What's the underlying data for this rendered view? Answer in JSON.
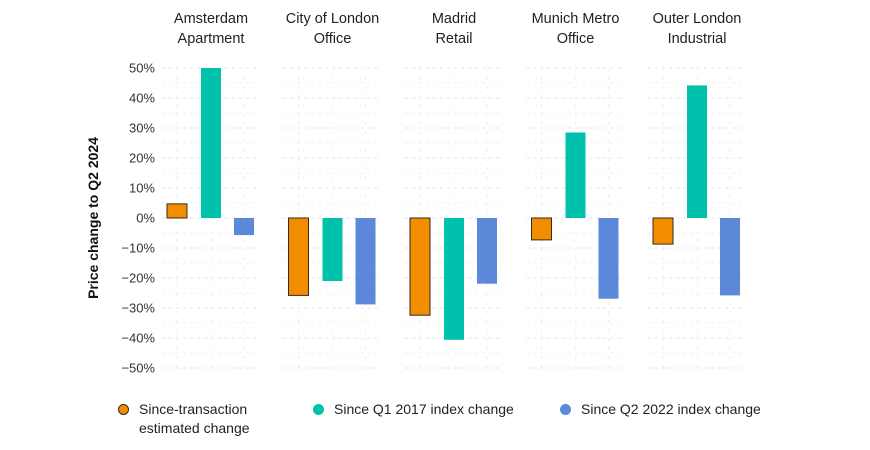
{
  "chart_data": {
    "type": "bar",
    "title": "",
    "xlabel": "",
    "ylabel": "Price change to Q2 2024",
    "ylim": [
      -50,
      50
    ],
    "y_ticks": [
      50,
      40,
      30,
      20,
      10,
      0,
      -10,
      -20,
      -30,
      -40,
      -50
    ],
    "y_tick_labels": [
      "50%",
      "40%",
      "30%",
      "20%",
      "10%",
      "0%",
      "−10%",
      "−20%",
      "−30%",
      "−40%",
      "−50%"
    ],
    "grid": true,
    "legend_position": "bottom",
    "categories": [
      [
        "Amsterdam",
        "Apartment"
      ],
      [
        "City of London",
        "Office"
      ],
      [
        "Madrid",
        "Retail"
      ],
      [
        "Munich Metro",
        "Office"
      ],
      [
        "Outer London",
        "Industrial"
      ]
    ],
    "series": [
      {
        "name": "Since-transaction estimated change",
        "legend_lines": [
          "Since-transaction",
          "estimated change"
        ],
        "color": "#F28C00",
        "outline": "#3a2a10",
        "values": [
          4.7,
          -25.8,
          -32.4,
          -7.3,
          -8.7
        ]
      },
      {
        "name": "Since Q1 2017 index change",
        "legend_lines": [
          "Since Q1 2017 index change"
        ],
        "color": "#00C1AB",
        "outline": null,
        "values": [
          50.0,
          -21.0,
          -40.6,
          28.5,
          44.2
        ]
      },
      {
        "name": "Since Q2 2022 index change",
        "legend_lines": [
          "Since Q2 2022 index change"
        ],
        "color": "#5C88DA",
        "outline": null,
        "values": [
          -5.7,
          -28.8,
          -21.9,
          -26.9,
          -25.8
        ]
      }
    ]
  }
}
